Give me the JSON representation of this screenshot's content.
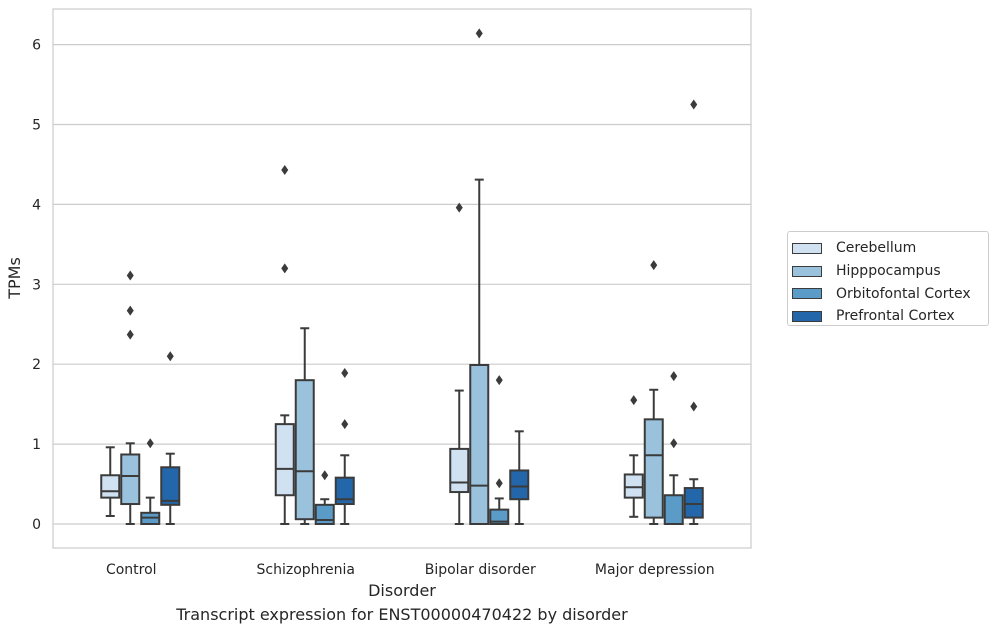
{
  "chart_data": {
    "type": "boxplot",
    "xlabel": "Disorder",
    "ylabel": "TPMs",
    "ylim": [
      -0.3,
      6.45
    ],
    "yticks": [
      0,
      1,
      2,
      3,
      4,
      5,
      6
    ],
    "grid": "horizontal",
    "legend_position": "outside-right",
    "categories": [
      "Control",
      "Schizophrenia",
      "Bipolar disorder",
      "Major depression"
    ],
    "series": [
      {
        "name": "Cerebellum",
        "color": "#d0e1f2",
        "boxes": [
          {
            "whislo": 0.1,
            "q1": 0.33,
            "med": 0.41,
            "q3": 0.61,
            "whishi": 0.96,
            "fliers": []
          },
          {
            "whislo": 0.0,
            "q1": 0.36,
            "med": 0.69,
            "q3": 1.25,
            "whishi": 1.36,
            "fliers": [
              3.2,
              4.43
            ]
          },
          {
            "whislo": 0.0,
            "q1": 0.4,
            "med": 0.52,
            "q3": 0.94,
            "whishi": 1.67,
            "fliers": [
              3.96
            ]
          },
          {
            "whislo": 0.09,
            "q1": 0.33,
            "med": 0.46,
            "q3": 0.62,
            "whishi": 0.86,
            "fliers": [
              1.55
            ]
          }
        ]
      },
      {
        "name": "Hipppocampus",
        "color": "#9ac2dd",
        "boxes": [
          {
            "whislo": 0.0,
            "q1": 0.25,
            "med": 0.6,
            "q3": 0.87,
            "whishi": 1.01,
            "fliers": [
              2.37,
              2.67,
              3.11
            ]
          },
          {
            "whislo": 0.0,
            "q1": 0.06,
            "med": 0.66,
            "q3": 1.8,
            "whishi": 2.45,
            "fliers": []
          },
          {
            "whislo": 0.0,
            "q1": 0.0,
            "med": 0.48,
            "q3": 1.99,
            "whishi": 4.31,
            "fliers": [
              6.14
            ]
          },
          {
            "whislo": 0.0,
            "q1": 0.08,
            "med": 0.86,
            "q3": 1.31,
            "whishi": 1.68,
            "fliers": [
              3.24
            ]
          }
        ]
      },
      {
        "name": "Orbitofontal Cortex",
        "color": "#5b9bc8",
        "boxes": [
          {
            "whislo": 0.0,
            "q1": 0.0,
            "med": 0.08,
            "q3": 0.14,
            "whishi": 0.33,
            "fliers": [
              1.01
            ]
          },
          {
            "whislo": 0.0,
            "q1": 0.0,
            "med": 0.05,
            "q3": 0.24,
            "whishi": 0.31,
            "fliers": [
              0.61
            ]
          },
          {
            "whislo": 0.0,
            "q1": 0.0,
            "med": 0.03,
            "q3": 0.18,
            "whishi": 0.32,
            "fliers": [
              0.51,
              1.8
            ]
          },
          {
            "whislo": 0.0,
            "q1": 0.0,
            "med": 0.0,
            "q3": 0.36,
            "whishi": 0.61,
            "fliers": [
              1.01,
              1.85
            ]
          }
        ]
      },
      {
        "name": "Prefrontal Cortex",
        "color": "#2466aa",
        "boxes": [
          {
            "whislo": 0.0,
            "q1": 0.24,
            "med": 0.29,
            "q3": 0.71,
            "whishi": 0.88,
            "fliers": [
              2.1
            ]
          },
          {
            "whislo": 0.0,
            "q1": 0.25,
            "med": 0.31,
            "q3": 0.58,
            "whishi": 0.86,
            "fliers": [
              1.25,
              1.89
            ]
          },
          {
            "whislo": 0.0,
            "q1": 0.31,
            "med": 0.47,
            "q3": 0.67,
            "whishi": 1.16,
            "fliers": []
          },
          {
            "whislo": 0.0,
            "q1": 0.08,
            "med": 0.25,
            "q3": 0.45,
            "whishi": 0.56,
            "fliers": [
              1.47,
              5.25
            ]
          }
        ]
      }
    ]
  },
  "caption": "Transcript expression for ENST00000470422 by disorder",
  "colors": {
    "grid": "#cccccc",
    "frame": "#cccccc",
    "line": "#3b3b3b",
    "text": "#262626"
  }
}
